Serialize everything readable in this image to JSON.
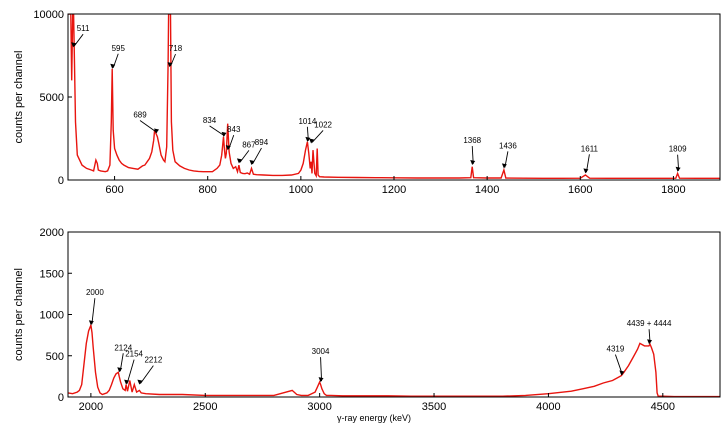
{
  "chart_data": [
    {
      "type": "line",
      "ylabel": "counts per channel",
      "xlabel": "",
      "xlim": [
        500,
        1900
      ],
      "ylim": [
        0,
        10000
      ],
      "x_ticks": [
        600,
        800,
        1000,
        1200,
        1400,
        1600,
        1800
      ],
      "y_ticks": [
        0,
        5000,
        10000
      ],
      "color": "#e8150f",
      "grid": false,
      "series": [
        {
          "x": [
            500,
            503,
            506,
            508,
            510,
            511,
            512,
            514,
            516,
            520,
            530,
            540,
            550,
            555,
            560,
            563,
            565,
            570,
            580,
            585,
            590,
            593,
            595,
            597,
            600,
            605,
            610,
            615,
            620,
            630,
            640,
            650,
            660,
            665,
            670,
            675,
            680,
            684,
            686,
            689,
            692,
            695,
            700,
            705,
            708,
            712,
            715,
            716,
            718,
            720,
            722,
            725,
            730,
            740,
            750,
            760,
            770,
            780,
            790,
            800,
            810,
            820,
            826,
            830,
            834,
            836,
            838,
            840,
            843,
            846,
            850,
            855,
            860,
            864,
            867,
            870,
            875,
            880,
            885,
            890,
            894,
            898,
            905,
            920,
            940,
            960,
            980,
            995,
            1000,
            1005,
            1010,
            1014,
            1017,
            1020,
            1022,
            1024,
            1026,
            1030,
            1033,
            1035,
            1037,
            1040,
            1050,
            1080,
            1120,
            1160,
            1200,
            1250,
            1300,
            1340,
            1365,
            1368,
            1371,
            1400,
            1430,
            1436,
            1440,
            1480,
            1520,
            1560,
            1600,
            1611,
            1620,
            1660,
            1700,
            1750,
            1790,
            1805,
            1809,
            1813,
            1850,
            1900
          ],
          "y": [
            10000,
            10000,
            10000,
            6000,
            10000,
            10000,
            10000,
            7000,
            3500,
            1500,
            900,
            700,
            600,
            550,
            1200,
            1000,
            600,
            550,
            500,
            550,
            900,
            3500,
            6700,
            3000,
            1900,
            1500,
            1200,
            1000,
            900,
            750,
            700,
            650,
            850,
            900,
            1100,
            1300,
            1700,
            2400,
            3000,
            2800,
            2600,
            2200,
            1500,
            1200,
            1100,
            2000,
            7000,
            10000,
            10000,
            10000,
            3500,
            1800,
            1100,
            850,
            700,
            600,
            550,
            520,
            500,
            500,
            500,
            700,
            900,
            1500,
            2600,
            1800,
            1300,
            1600,
            3400,
            1700,
            1000,
            700,
            800,
            500,
            900,
            450,
            400,
            380,
            420,
            350,
            700,
            350,
            320,
            300,
            280,
            280,
            300,
            400,
            600,
            1000,
            1800,
            2300,
            1600,
            700,
            1100,
            400,
            1800,
            400,
            250,
            1900,
            300,
            200,
            180,
            160,
            150,
            140,
            130,
            120,
            120,
            120,
            140,
            800,
            140,
            120,
            120,
            600,
            120,
            110,
            100,
            100,
            110,
            300,
            110,
            100,
            100,
            100,
            100,
            110,
            400,
            110,
            100,
            100
          ]
        }
      ],
      "annotations": [
        {
          "label": "511",
          "x": 511,
          "y": 8000
        },
        {
          "label": "595",
          "x": 595,
          "y": 6700
        },
        {
          "label": "718",
          "x": 718,
          "y": 6800
        },
        {
          "label": "689",
          "x": 689,
          "y": 2800
        },
        {
          "label": "834",
          "x": 834,
          "y": 2600
        },
        {
          "label": "843",
          "x": 843,
          "y": 1800
        },
        {
          "label": "867",
          "x": 867,
          "y": 1000
        },
        {
          "label": "894",
          "x": 894,
          "y": 900
        },
        {
          "label": "1014",
          "x": 1014,
          "y": 2300
        },
        {
          "label": "1022",
          "x": 1022,
          "y": 2200
        },
        {
          "label": "1368",
          "x": 1368,
          "y": 900
        },
        {
          "label": "1436",
          "x": 1436,
          "y": 700
        },
        {
          "label": "1611",
          "x": 1611,
          "y": 400
        },
        {
          "label": "1809",
          "x": 1809,
          "y": 500
        }
      ]
    },
    {
      "type": "line",
      "ylabel": "counts per channel",
      "xlabel": "γ-ray energy (keV)",
      "xlim": [
        1900,
        4750
      ],
      "ylim": [
        0,
        2000
      ],
      "x_ticks": [
        2000,
        2500,
        3000,
        3500,
        4000,
        4500
      ],
      "y_ticks": [
        0,
        500,
        1000,
        1500,
        2000
      ],
      "color": "#e8150f",
      "grid": false,
      "series": [
        {
          "x": [
            1900,
            1920,
            1940,
            1950,
            1960,
            1970,
            1980,
            1990,
            2000,
            2005,
            2010,
            2020,
            2030,
            2040,
            2050,
            2060,
            2070,
            2080,
            2090,
            2100,
            2110,
            2120,
            2124,
            2130,
            2140,
            2150,
            2154,
            2160,
            2170,
            2180,
            2190,
            2200,
            2212,
            2220,
            2240,
            2300,
            2400,
            2500,
            2600,
            2700,
            2800,
            2880,
            2900,
            2920,
            2950,
            2980,
            2990,
            3000,
            3004,
            3010,
            3020,
            3030,
            3050,
            3100,
            3200,
            3300,
            3400,
            3500,
            3600,
            3700,
            3800,
            3900,
            4000,
            4100,
            4150,
            4200,
            4240,
            4280,
            4300,
            4319,
            4330,
            4350,
            4370,
            4390,
            4400,
            4420,
            4439,
            4444,
            4450,
            4460,
            4470,
            4475,
            4480,
            4500,
            4550,
            4600,
            4650,
            4700,
            4750
          ],
          "y": [
            50,
            40,
            60,
            80,
            150,
            400,
            650,
            800,
            870,
            780,
            600,
            300,
            120,
            50,
            30,
            40,
            50,
            80,
            150,
            230,
            280,
            300,
            250,
            180,
            100,
            80,
            150,
            70,
            200,
            60,
            150,
            60,
            80,
            50,
            40,
            30,
            30,
            20,
            20,
            20,
            20,
            80,
            30,
            20,
            20,
            60,
            120,
            180,
            150,
            100,
            40,
            20,
            20,
            15,
            15,
            15,
            10,
            10,
            10,
            10,
            10,
            20,
            40,
            70,
            100,
            130,
            170,
            200,
            230,
            260,
            300,
            380,
            480,
            580,
            650,
            620,
            620,
            640,
            600,
            520,
            300,
            50,
            10,
            10,
            5,
            5,
            5,
            5,
            5
          ]
        }
      ],
      "annotations": [
        {
          "label": "2000",
          "x": 2000,
          "y": 870
        },
        {
          "label": "2124",
          "x": 2124,
          "y": 300
        },
        {
          "label": "2154",
          "x": 2154,
          "y": 150
        },
        {
          "label": "2212",
          "x": 2212,
          "y": 150
        },
        {
          "label": "3004",
          "x": 3004,
          "y": 180
        },
        {
          "label": "4319",
          "x": 4319,
          "y": 260
        },
        {
          "label": "4439 + 4444",
          "x": 4440,
          "y": 640
        }
      ]
    }
  ]
}
